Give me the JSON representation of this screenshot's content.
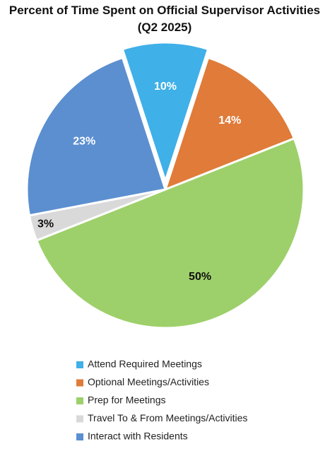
{
  "chart_data": {
    "type": "pie",
    "title": "Percent of Time Spent on Official Supervisor Activities",
    "subtitle": "(Q2 2025)",
    "categories": [
      "Attend Required Meetings",
      "Optional Meetings/Activities",
      "Prep for Meetings",
      "Travel To & From Meetings/Activities",
      "Interact with Residents"
    ],
    "values": [
      10,
      14,
      50,
      3,
      23
    ],
    "value_labels": [
      "10%",
      "14%",
      "50%",
      "3%",
      "23%"
    ],
    "colors": [
      "#3fb0e8",
      "#e07b39",
      "#9dd06a",
      "#d9d9d9",
      "#5b8fd0"
    ],
    "exploded": [
      true,
      false,
      false,
      false,
      false
    ],
    "legend": "bottom"
  }
}
